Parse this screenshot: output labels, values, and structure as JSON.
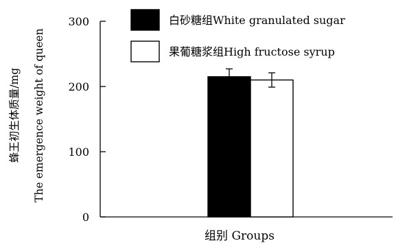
{
  "chart_data": {
    "type": "bar",
    "categories": [
      "白砂糖组White granulated sugar",
      "果葡糖浆组High fructose syrup"
    ],
    "values": [
      215,
      210
    ],
    "errors": [
      12,
      11
    ],
    "colors": [
      "#000000",
      "#ffffff"
    ],
    "ylabel_cn": "蜂王初生体质量/mg",
    "ylabel_en": "The emergence weight of queen",
    "xlabel": "组别  Groups",
    "ylim": [
      0,
      300
    ],
    "yticks": [
      0,
      100,
      200,
      300
    ],
    "legend": {
      "position": "top",
      "entries": [
        {
          "label": "白砂糖组White granulated sugar",
          "color": "#000000"
        },
        {
          "label": "果葡糖浆组High fructose syrup",
          "color": "#ffffff"
        }
      ]
    },
    "grid": false
  }
}
